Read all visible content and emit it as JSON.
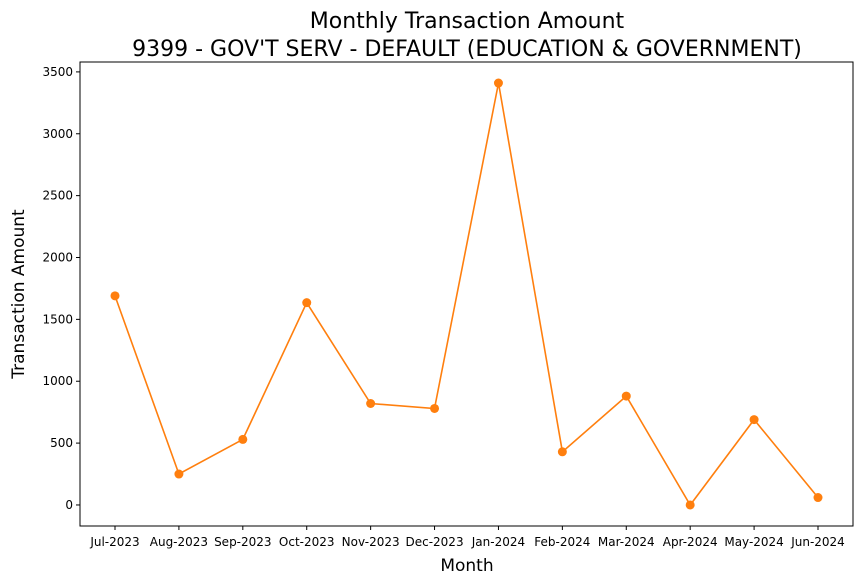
{
  "chart_data": {
    "type": "line",
    "title": "Monthly Transaction Amount",
    "subtitle": "9399 - GOV'T SERV - DEFAULT (EDUCATION & GOVERNMENT)",
    "xlabel": "Month",
    "ylabel": "Transaction Amount",
    "categories": [
      "Jul-2023",
      "Aug-2023",
      "Sep-2023",
      "Oct-2023",
      "Nov-2023",
      "Dec-2023",
      "Jan-2024",
      "Feb-2024",
      "Mar-2024",
      "Apr-2024",
      "May-2024",
      "Jun-2024"
    ],
    "values": [
      1690,
      250,
      530,
      1635,
      820,
      780,
      3410,
      430,
      880,
      0,
      690,
      60
    ],
    "ylim": [
      -170,
      3580
    ],
    "yticks": [
      0,
      500,
      1000,
      1500,
      2000,
      2500,
      3000,
      3500
    ],
    "line_color": "#ff7f0e",
    "marker": "circle",
    "grid": false,
    "legend": "none"
  }
}
